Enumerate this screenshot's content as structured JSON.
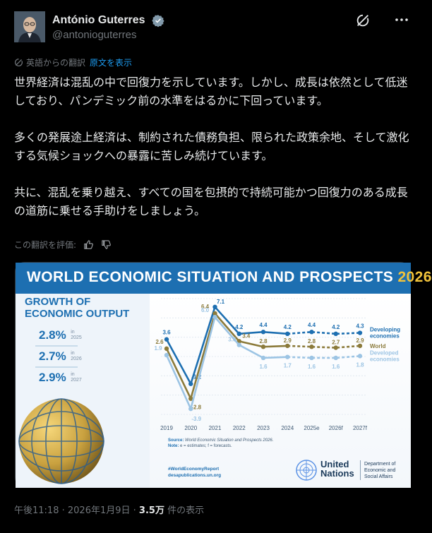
{
  "author": {
    "name": "António Guterres",
    "handle": "@antonioguterres"
  },
  "translation": {
    "note": "英語からの翻訳",
    "show_original": "原文を表示"
  },
  "tweet": {
    "paragraphs": [
      "世界経済は混乱の中で回復力を示しています。しかし、成長は依然として低迷しており、パンデミック前の水準をはるかに下回っています。",
      "多くの発展途上経済は、制約された債務負担、限られた政策余地、そして激化する気候ショックへの暴露に苦しみ続けています。",
      "共に、混乱を乗り越え、すべての国を包摂的で持続可能かつ回復力のある成長の道筋に乗せる手助けをしましょう。"
    ]
  },
  "rate": {
    "label": "この翻訳を評価:"
  },
  "card": {
    "title_main": "WORLD ECONOMIC SITUATION AND PROSPECTS",
    "title_year": "2026",
    "growth_title_1": "GROWTH OF",
    "growth_title_2": "ECONOMIC OUTPUT",
    "stats": [
      {
        "value": "2.8%",
        "in": "in",
        "year": "2025"
      },
      {
        "value": "2.7%",
        "in": "in",
        "year": "2026"
      },
      {
        "value": "2.9%",
        "in": "in",
        "year": "2027"
      }
    ],
    "source_label": "Source:",
    "source_text": "World Economic Situation and Prospects 2026.",
    "note_label": "Note:",
    "note_text": "e = estimates; f = forecasts.",
    "hashtag": "#WorldEconomyReport",
    "site": "desapublications.un.org",
    "un_line1": "United",
    "un_line2": "Nations",
    "desa_line1": "Department of",
    "desa_line2": "Economic and",
    "desa_line3": "Social Affairs"
  },
  "chart_data": {
    "type": "line",
    "x": [
      "2019",
      "2020",
      "2021",
      "2022",
      "2023",
      "2024",
      "2025e",
      "2026f",
      "2027f"
    ],
    "ylim": [
      -4.5,
      8
    ],
    "series": [
      {
        "name": "Developing economies",
        "color": "#1d6fb1",
        "values": [
          3.6,
          -1.2,
          7.1,
          4.2,
          4.4,
          4.2,
          4.4,
          4.2,
          4.3
        ],
        "labels": [
          "3.6",
          "-1.2",
          "7.1",
          "4.2",
          "4.4",
          "4.2",
          "4.4",
          "4.2",
          "4.3"
        ]
      },
      {
        "name": "World",
        "color": "#8b7a3a",
        "values": [
          2.6,
          -2.8,
          6.4,
          3.4,
          2.8,
          2.9,
          2.8,
          2.7,
          2.9
        ],
        "labels": [
          "2.6",
          "-2.8",
          "6.4",
          "3.4",
          "2.8",
          "2.9",
          "2.8",
          "2.7",
          "2.9"
        ]
      },
      {
        "name": "Developed economies",
        "color": "#9cc4e4",
        "values": [
          1.9,
          -3.9,
          6.0,
          3.0,
          1.6,
          1.7,
          1.6,
          1.6,
          1.8
        ],
        "labels": [
          "1.9",
          "-3.9",
          "6.0",
          "3.0",
          "1.6",
          "1.7",
          "1.6",
          "1.6",
          "1.8"
        ]
      }
    ],
    "legend_labels": [
      "Developing economies",
      "World",
      "Developed economies"
    ],
    "legend_placement": "right",
    "grid": true
  },
  "meta": {
    "time": "午後11:18",
    "date": "2026年1月9日",
    "views": "3.5万",
    "views_label": "件の表示"
  },
  "colors": {
    "accent": "#1d9bf0",
    "un_blue": "#1d6fb1",
    "gold": "#f0c23b"
  }
}
